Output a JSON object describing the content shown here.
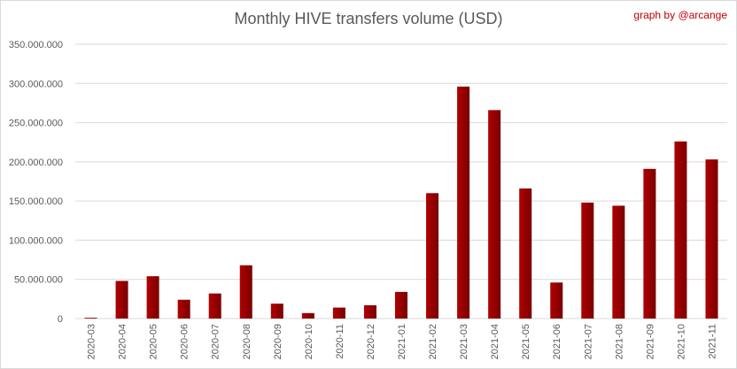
{
  "credit": "graph by @arcange",
  "colors": {
    "bar": "#b00000",
    "bar_dark": "#7a0000",
    "grid": "#d9d9d9",
    "text": "#595959"
  },
  "chart_data": {
    "type": "bar",
    "title": "Monthly HIVE transfers volume (USD)",
    "xlabel": "",
    "ylabel": "",
    "ylim": [
      0,
      350000000
    ],
    "yticks": [
      0,
      50000000,
      100000000,
      150000000,
      200000000,
      250000000,
      300000000,
      350000000
    ],
    "ytick_labels": [
      "0",
      "50.000.000",
      "100.000.000",
      "150.000.000",
      "200.000.000",
      "250.000.000",
      "300.000.000",
      "350.000.000"
    ],
    "grid": true,
    "legend": "none",
    "categories": [
      "2020-03",
      "2020-04",
      "2020-05",
      "2020-06",
      "2020-07",
      "2020-08",
      "2020-09",
      "2020-10",
      "2020-11",
      "2020-12",
      "2021-01",
      "2021-02",
      "2021-03",
      "2021-04",
      "2021-05",
      "2021-06",
      "2021-07",
      "2021-08",
      "2021-09",
      "2021-10",
      "2021-11"
    ],
    "values": [
      1000000,
      48000000,
      54000000,
      24000000,
      32000000,
      68000000,
      19000000,
      7000000,
      14000000,
      17000000,
      34000000,
      160000000,
      296000000,
      266000000,
      166000000,
      46000000,
      148000000,
      144000000,
      191000000,
      226000000,
      203000000
    ]
  }
}
